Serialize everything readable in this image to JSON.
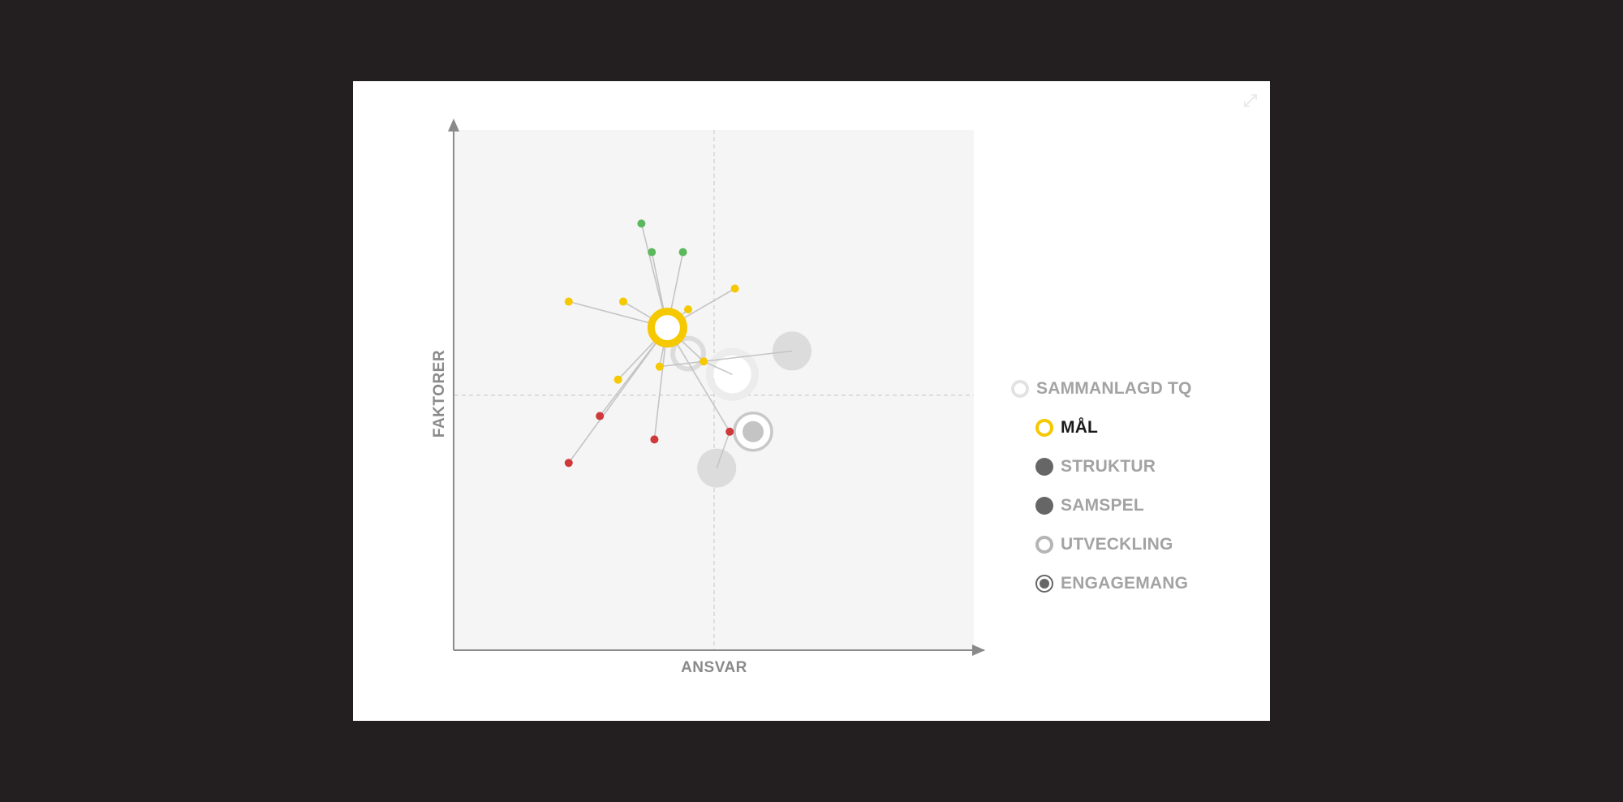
{
  "window": {
    "expand_icon": "expand-icon"
  },
  "colors": {
    "backdrop": "#231f20",
    "plot_bg": "#f5f5f5",
    "yellow": "#f5c800",
    "green": "#5cb85c",
    "red": "#d0393b",
    "gray_light": "#dcdcdc",
    "gray_dark": "#666666",
    "axis": "#888888",
    "line": "#c4c4c4"
  },
  "chart_data": {
    "type": "scatter",
    "xlabel": "ANSVAR",
    "ylabel": "FAKTORER",
    "xlim": [
      0,
      100
    ],
    "ylim": [
      0,
      100
    ],
    "grid": false,
    "center_lines": {
      "x": 50,
      "y": 49
    },
    "legend_position": "right",
    "hub": {
      "name": "MÅL",
      "x": 41,
      "y": 62
    },
    "items": [
      {
        "x": 36,
        "y": 82,
        "color": "green"
      },
      {
        "x": 38,
        "y": 76.5,
        "color": "green"
      },
      {
        "x": 44,
        "y": 76.5,
        "color": "green"
      },
      {
        "x": 22,
        "y": 67,
        "color": "yellow"
      },
      {
        "x": 32.5,
        "y": 67,
        "color": "yellow"
      },
      {
        "x": 45,
        "y": 65.5,
        "color": "yellow"
      },
      {
        "x": 54,
        "y": 69.5,
        "color": "yellow"
      },
      {
        "x": 48,
        "y": 55.5,
        "color": "yellow"
      },
      {
        "x": 39.5,
        "y": 54.5,
        "color": "yellow"
      },
      {
        "x": 31.5,
        "y": 52,
        "color": "yellow"
      },
      {
        "x": 28,
        "y": 45,
        "color": "red"
      },
      {
        "x": 38.5,
        "y": 40.5,
        "color": "red"
      },
      {
        "x": 22,
        "y": 36,
        "color": "red"
      },
      {
        "x": 53,
        "y": 42,
        "color": "red"
      }
    ],
    "series": [
      {
        "name": "SAMMANLAGD TQ",
        "x": 53.5,
        "y": 53,
        "style": "total-ring"
      },
      {
        "name": "STRUKTUR",
        "x": 65,
        "y": 57.5,
        "style": "solid-dark"
      },
      {
        "name": "SAMSPEL",
        "x": 50.5,
        "y": 35,
        "style": "solid-dark"
      },
      {
        "name": "UTVECKLING",
        "x": 45,
        "y": 57,
        "style": "ring"
      },
      {
        "name": "ENGAGEMANG",
        "x": 57.5,
        "y": 42,
        "style": "ring-dot"
      }
    ],
    "active_series": "MÅL"
  },
  "legend": [
    {
      "label": "SAMMANLAGD TQ",
      "swatch": "total-ring",
      "sub": false,
      "active": false,
      "icon": "sammanlagd-tq-legend-icon"
    },
    {
      "label": "MÅL",
      "swatch": "yellow-ring",
      "sub": true,
      "active": true,
      "icon": "mal-legend-icon"
    },
    {
      "label": "STRUKTUR",
      "swatch": "solid-dark",
      "sub": true,
      "active": false,
      "icon": "struktur-legend-icon"
    },
    {
      "label": "SAMSPEL",
      "swatch": "solid-dark",
      "sub": true,
      "active": false,
      "icon": "samspel-legend-icon"
    },
    {
      "label": "UTVECKLING",
      "swatch": "ring",
      "sub": true,
      "active": false,
      "icon": "utveckling-legend-icon"
    },
    {
      "label": "ENGAGEMANG",
      "swatch": "ring-dot",
      "sub": true,
      "active": false,
      "icon": "engagemang-legend-icon"
    }
  ]
}
